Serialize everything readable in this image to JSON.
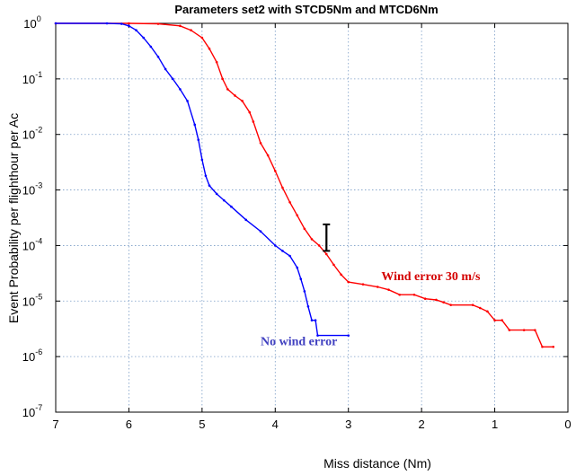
{
  "chart_data": {
    "type": "line",
    "title": "Parameters set2 with STCD5Nm and MTCD6Nm",
    "xlabel": "Miss distance (Nm)",
    "ylabel": "Event Probability per flighthour per Ac",
    "x_reversed": true,
    "xlim": [
      7,
      0
    ],
    "ylim": [
      1e-07,
      1
    ],
    "yscale": "log",
    "grid": true,
    "x_ticks": [
      7,
      6,
      5,
      4,
      3,
      2,
      1,
      0
    ],
    "y_ticks": [
      {
        "value": 1,
        "mantissa": "10",
        "exponent": "0"
      },
      {
        "value": 0.1,
        "mantissa": "10",
        "exponent": "-1"
      },
      {
        "value": 0.01,
        "mantissa": "10",
        "exponent": "-2"
      },
      {
        "value": 0.001,
        "mantissa": "10",
        "exponent": "-3"
      },
      {
        "value": 0.0001,
        "mantissa": "10",
        "exponent": "-4"
      },
      {
        "value": 1e-05,
        "mantissa": "10",
        "exponent": "-5"
      },
      {
        "value": 1e-06,
        "mantissa": "10",
        "exponent": "-6"
      },
      {
        "value": 1e-07,
        "mantissa": "10",
        "exponent": "-7"
      }
    ],
    "series": [
      {
        "name": "Wind error 30 m/s",
        "color": "#ff0000",
        "points": [
          [
            7.0,
            1.0
          ],
          [
            6.0,
            1.0
          ],
          [
            5.6,
            0.98
          ],
          [
            5.3,
            0.9
          ],
          [
            5.15,
            0.75
          ],
          [
            5.0,
            0.55
          ],
          [
            4.9,
            0.35
          ],
          [
            4.8,
            0.2
          ],
          [
            4.72,
            0.1
          ],
          [
            4.65,
            0.065
          ],
          [
            4.55,
            0.05
          ],
          [
            4.45,
            0.04
          ],
          [
            4.35,
            0.025
          ],
          [
            4.3,
            0.017
          ],
          [
            4.2,
            0.007
          ],
          [
            4.1,
            0.0042
          ],
          [
            4.0,
            0.0022
          ],
          [
            3.9,
            0.0011
          ],
          [
            3.8,
            0.0006
          ],
          [
            3.7,
            0.00035
          ],
          [
            3.6,
            0.0002
          ],
          [
            3.5,
            0.00013
          ],
          [
            3.4,
            0.0001
          ],
          [
            3.3,
            7e-05
          ],
          [
            3.2,
            4.5e-05
          ],
          [
            3.1,
            3e-05
          ],
          [
            3.0,
            2.2e-05
          ],
          [
            2.8,
            2e-05
          ],
          [
            2.6,
            1.8e-05
          ],
          [
            2.45,
            1.6e-05
          ],
          [
            2.3,
            1.3e-05
          ],
          [
            2.1,
            1.3e-05
          ],
          [
            1.95,
            1.1e-05
          ],
          [
            1.8,
            1.05e-05
          ],
          [
            1.7,
            9.5e-06
          ],
          [
            1.6,
            8.5e-06
          ],
          [
            1.3,
            8.5e-06
          ],
          [
            1.2,
            7.5e-06
          ],
          [
            1.1,
            6.5e-06
          ],
          [
            1.0,
            4.5e-06
          ],
          [
            0.9,
            4.5e-06
          ],
          [
            0.8,
            3e-06
          ],
          [
            0.6,
            3e-06
          ],
          [
            0.45,
            3e-06
          ],
          [
            0.35,
            1.5e-06
          ],
          [
            0.2,
            1.5e-06
          ]
        ]
      },
      {
        "name": "No wind error",
        "color": "#0000ff",
        "points": [
          [
            7.0,
            1.0
          ],
          [
            6.3,
            1.0
          ],
          [
            6.1,
            0.98
          ],
          [
            6.0,
            0.9
          ],
          [
            5.9,
            0.75
          ],
          [
            5.8,
            0.55
          ],
          [
            5.7,
            0.38
          ],
          [
            5.6,
            0.25
          ],
          [
            5.5,
            0.15
          ],
          [
            5.4,
            0.1
          ],
          [
            5.3,
            0.065
          ],
          [
            5.2,
            0.04
          ],
          [
            5.1,
            0.015
          ],
          [
            5.05,
            0.008
          ],
          [
            5.0,
            0.0035
          ],
          [
            4.95,
            0.0018
          ],
          [
            4.9,
            0.0012
          ],
          [
            4.8,
            0.00085
          ],
          [
            4.7,
            0.00065
          ],
          [
            4.6,
            0.0005
          ],
          [
            4.4,
            0.00029
          ],
          [
            4.2,
            0.00018
          ],
          [
            4.0,
            0.0001
          ],
          [
            3.9,
            8e-05
          ],
          [
            3.8,
            6.5e-05
          ],
          [
            3.7,
            4e-05
          ],
          [
            3.65,
            2.5e-05
          ],
          [
            3.6,
            1.5e-05
          ],
          [
            3.55,
            8e-06
          ],
          [
            3.5,
            4.5e-06
          ],
          [
            3.45,
            4.5e-06
          ],
          [
            3.42,
            2.4e-06
          ],
          [
            3.0,
            2.4e-06
          ]
        ]
      }
    ],
    "error_bar": {
      "x": 3.3,
      "y_low": 8e-05,
      "y_high": 0.00024,
      "color": "#000000"
    },
    "annotations": [
      {
        "text": "Wind error 30 m/s",
        "x": 2.55,
        "y": 2.4e-05,
        "color": "#d40000"
      },
      {
        "text": "No wind error",
        "x": 4.2,
        "y": 1.6e-06,
        "color": "#4040c0"
      }
    ]
  }
}
